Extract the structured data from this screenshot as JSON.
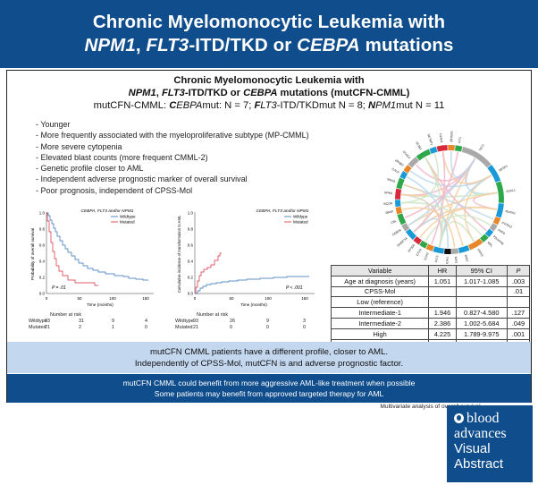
{
  "header": {
    "line1": "Chronic Myelomonocytic Leukemia with",
    "line2_parts": [
      "NPM1",
      ", ",
      "FLT3",
      "-ITD/TKD or ",
      "CEBPA",
      " mutations"
    ]
  },
  "subheader": {
    "line1": "Chronic Myelomonocytic Leukemia with",
    "line2_parts": [
      "NPM1",
      ", ",
      "FLT3",
      "-ITD/TKD or ",
      "CEBPA",
      " mutations (mutCFN-CMML)"
    ],
    "counts_parts": [
      "mutCFN-CMML: ",
      "C",
      "EBPA",
      "mut: N = 7; ",
      "F",
      "LT3",
      "-ITD/TKDmut N = 8; ",
      "N",
      "PM1",
      "mut N = 11"
    ]
  },
  "bullets": [
    "Younger",
    "More frequently associated with the myeloproliferative subtype (MP-CMML)",
    "More severe cytopenia",
    "Elevated blast counts (more frequent CMML-2)",
    "Genetic profile closer to AML",
    "Independent adverse prognostic marker of overall survival",
    "Poor prognosis, independent of CPSS-Mol"
  ],
  "km_os": {
    "title": "CEBPA, FLT3 and/or NPM1",
    "legend": [
      "Wildtype",
      "Mutated"
    ],
    "ylabel": "Probability of overall survival",
    "xlabel": "Time (months)",
    "pvalue": "P = .01",
    "yticks": [
      "1.0",
      "0.8",
      "0.6",
      "0.4",
      "0.2",
      "0.0"
    ],
    "xticks": [
      "0",
      "50",
      "100",
      "150"
    ],
    "risk_title": "Number at risk",
    "risk_rows": [
      {
        "label": "Wildtype",
        "values": [
          "93",
          "31",
          "9",
          "4"
        ]
      },
      {
        "label": "Mutated",
        "values": [
          "21",
          "2",
          "1",
          "0"
        ]
      }
    ]
  },
  "km_aml": {
    "title": "CEBPA, FLT3 and/or NPM1",
    "legend": [
      "Wildype",
      "Mutated"
    ],
    "ylabel": "Cumulative incidence of transformation to AML",
    "xlabel": "Time (months)",
    "pvalue": "P < .001",
    "yticks": [
      "1.0",
      "0.8",
      "0.6",
      "0.4",
      "0.2",
      "0.0"
    ],
    "xticks": [
      "0",
      "50",
      "100",
      "150"
    ],
    "risk_title": "Number at risk",
    "risk_rows": [
      {
        "label": "Wildtype",
        "values": [
          "93",
          "26",
          "9",
          "3"
        ]
      },
      {
        "label": "Mutated",
        "values": [
          "21",
          "0",
          "0",
          "0"
        ]
      }
    ]
  },
  "circos": {
    "genes": [
      "TET2",
      "SRSF2",
      "ASXL1",
      "RUNX1",
      "PTPN11",
      "PHF6",
      "PDGFRB",
      "MPL",
      "KRAS",
      "JAK2",
      "IDH2",
      "IDH1",
      "FLT3",
      "EZH2",
      "ETV6",
      "EP300",
      "DNMT3A",
      "CEBPA",
      "CBL",
      "BRAF",
      "BCOR",
      "NPM1",
      "NRAS",
      "CALR",
      "ZRSR2",
      "STAG2",
      "SF3B1",
      "SETBP1",
      "U2AF1",
      "ZBTB33",
      "WT1"
    ]
  },
  "table": {
    "headers": [
      "Variable",
      "HR",
      "95% CI",
      "P"
    ],
    "rows": [
      [
        "Age at diagnosis (years)",
        "1.051",
        "1.017-1.085",
        ".003"
      ],
      [
        "CPSS-Mol",
        "",
        "",
        ".01"
      ],
      [
        "Low (reference)",
        "",
        "",
        ""
      ],
      [
        "Intermediate-1",
        "1.946",
        "0.827-4.580",
        ".127"
      ],
      [
        "Intermediate-2",
        "2.386",
        "1.002-5.684",
        ".049"
      ],
      [
        "High",
        "4.225",
        "1.789-9.975",
        ".001"
      ],
      [
        "mutCFN",
        "2.548",
        "1.255-5.172",
        ".01"
      ]
    ],
    "caption": "Multivariate analysis of overall survival"
  },
  "conclusion": [
    "mutCFN CMML patients have a different profile, closer to AML.",
    "Independently of CPSS-Mol, mutCFN is and adverse prognostic factor."
  ],
  "benefit": [
    "mutCFN CMML could benefit from more aggressive AML-like treatment when possible",
    "Some patients may benefit from approved targeted therapy for AML"
  ],
  "logo": {
    "line1": "blood",
    "line2": "advances",
    "line3": "Visual",
    "line4": "Abstract"
  },
  "colors": {
    "brand_blue": "#0f4d8c",
    "light_blue": "#c3d7ef",
    "wildtype": "#2c6fb7",
    "mutated": "#d8283c"
  }
}
